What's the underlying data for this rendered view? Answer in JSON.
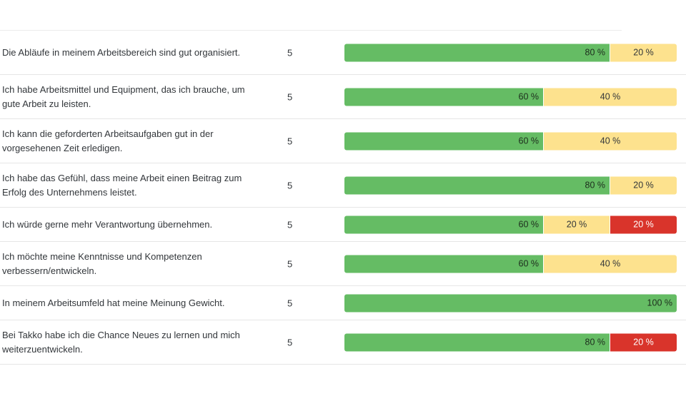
{
  "colors": {
    "positive": "#65bc64",
    "neutral": "#fde28e",
    "negative": "#d9342b"
  },
  "rows": [
    {
      "question": "Die Abläufe in meinem Arbeitsbereich sind gut organisiert.",
      "count": "5",
      "segments": [
        {
          "kind": "green",
          "pct": 80,
          "label": "80 %"
        },
        {
          "kind": "yellow",
          "pct": 20,
          "label": "20 %"
        }
      ]
    },
    {
      "question": "Ich habe Arbeitsmittel und Equipment, das ich brauche, um gute Arbeit zu leisten.",
      "count": "5",
      "segments": [
        {
          "kind": "green",
          "pct": 60,
          "label": "60 %"
        },
        {
          "kind": "yellow",
          "pct": 40,
          "label": "40 %"
        }
      ]
    },
    {
      "question": "Ich kann die geforderten Arbeitsaufgaben gut in der vorgesehenen Zeit erledigen.",
      "count": "5",
      "segments": [
        {
          "kind": "green",
          "pct": 60,
          "label": "60 %"
        },
        {
          "kind": "yellow",
          "pct": 40,
          "label": "40 %"
        }
      ]
    },
    {
      "question": "Ich habe das Gefühl, dass meine Arbeit einen Beitrag zum Erfolg des Unternehmens leistet.",
      "count": "5",
      "segments": [
        {
          "kind": "green",
          "pct": 80,
          "label": "80 %"
        },
        {
          "kind": "yellow",
          "pct": 20,
          "label": "20 %"
        }
      ]
    },
    {
      "question": "Ich würde gerne mehr Verantwortung übernehmen.",
      "count": "5",
      "segments": [
        {
          "kind": "green",
          "pct": 60,
          "label": "60 %"
        },
        {
          "kind": "yellow",
          "pct": 20,
          "label": "20 %"
        },
        {
          "kind": "red",
          "pct": 20,
          "label": "20 %"
        }
      ]
    },
    {
      "question": "Ich möchte meine Kenntnisse und Kompetenzen verbessern/entwickeln.",
      "count": "5",
      "segments": [
        {
          "kind": "green",
          "pct": 60,
          "label": "60 %"
        },
        {
          "kind": "yellow",
          "pct": 40,
          "label": "40 %"
        }
      ]
    },
    {
      "question": "In meinem Arbeitsumfeld hat meine Meinung Gewicht.",
      "count": "5",
      "segments": [
        {
          "kind": "green",
          "pct": 100,
          "label": "100 %"
        }
      ]
    },
    {
      "question": "Bei Takko habe ich die Chance Neues zu lernen und mich weiterzuentwickeln.",
      "count": "5",
      "segments": [
        {
          "kind": "green",
          "pct": 80,
          "label": "80 %"
        },
        {
          "kind": "red",
          "pct": 20,
          "label": "20 %"
        }
      ]
    }
  ]
}
